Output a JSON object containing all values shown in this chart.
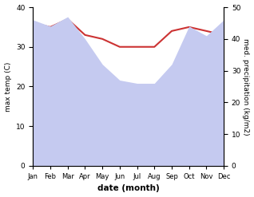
{
  "months": [
    "Jan",
    "Feb",
    "Mar",
    "Apr",
    "May",
    "Jun",
    "Jul",
    "Aug",
    "Sep",
    "Oct",
    "Nov",
    "Dec"
  ],
  "month_indices": [
    0,
    1,
    2,
    3,
    4,
    5,
    6,
    7,
    8,
    9,
    10,
    11
  ],
  "temp_max": [
    36,
    35,
    37,
    33,
    32,
    30,
    30,
    30,
    34,
    35,
    34,
    33
  ],
  "precipitation": [
    46,
    44,
    47,
    40,
    32,
    27,
    26,
    26,
    32,
    44,
    41,
    46
  ],
  "temp_color": "#cc3333",
  "precip_fill_color": "#c5caf0",
  "ylabel_left": "max temp (C)",
  "ylabel_right": "med. precipitation (kg/m2)",
  "xlabel": "date (month)",
  "ylim_left": [
    0,
    40
  ],
  "ylim_right": [
    0,
    50
  ],
  "yticks_left": [
    0,
    10,
    20,
    30,
    40
  ],
  "yticks_right": [
    0,
    10,
    20,
    30,
    40,
    50
  ],
  "background_color": "#ffffff",
  "fig_width": 3.18,
  "fig_height": 2.47,
  "dpi": 100
}
